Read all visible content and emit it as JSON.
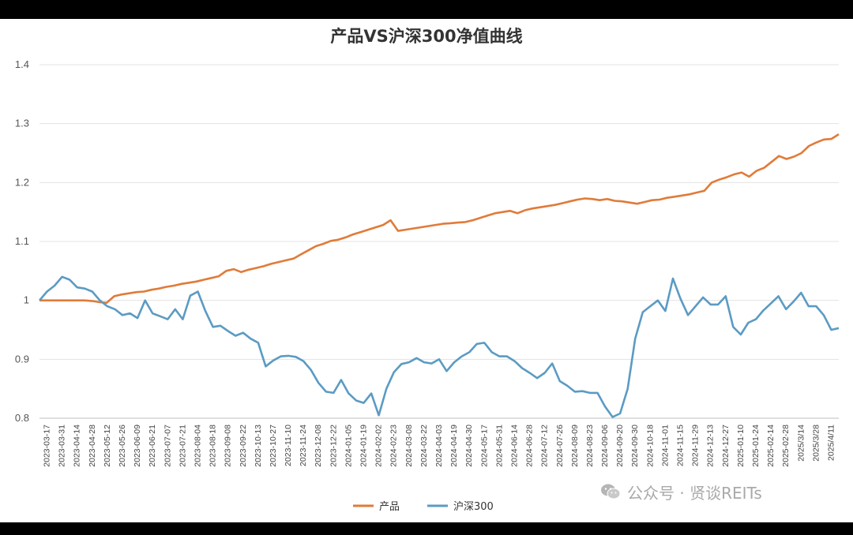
{
  "chart_data": {
    "type": "line",
    "title": "产品VS沪深300净值曲线",
    "xlabel": "",
    "ylabel": "",
    "ylim": [
      0.8,
      1.4
    ],
    "yticks": [
      "0.8",
      "0.9",
      "1",
      "1.1",
      "1.2",
      "1.3",
      "1.4"
    ],
    "grid": true,
    "legend_position": "bottom",
    "x_ticks": [
      "2023-03-17",
      "2023-03-31",
      "2023-04-14",
      "2023-04-28",
      "2023-05-12",
      "2023-05-26",
      "2023-06-09",
      "2023-06-21",
      "2023-07-07",
      "2023-07-21",
      "2023-08-04",
      "2023-08-18",
      "2023-09-08",
      "2023-09-22",
      "2023-10-13",
      "2023-10-27",
      "2023-11-10",
      "2023-11-24",
      "2023-12-08",
      "2023-12-22",
      "2024-01-05",
      "2024-01-19",
      "2024-02-02",
      "2024-02-23",
      "2024-03-08",
      "2024-03-22",
      "2024-04-03",
      "2024-04-19",
      "2024-04-30",
      "2024-05-17",
      "2024-05-31",
      "2024-06-14",
      "2024-06-28",
      "2024-07-12",
      "2024-07-26",
      "2024-08-09",
      "2024-08-23",
      "2024-09-06",
      "2024-09-20",
      "2024-09-30",
      "2024-10-18",
      "2024-11-01",
      "2024-11-15",
      "2024-11-29",
      "2024-12-13",
      "2024-12-27",
      "2025-01-10",
      "2025-01-24",
      "2025-02-14",
      "2025-02-28",
      "2025/3/14",
      "2025/3/28",
      "2025/4/11"
    ],
    "series": [
      {
        "name": "产品",
        "color": "#E07B39",
        "values": [
          1.0,
          1.0,
          1.0,
          1.0,
          1.0,
          1.0,
          1.0,
          0.999,
          0.997,
          0.996,
          1.007,
          1.01,
          1.012,
          1.014,
          1.015,
          1.018,
          1.02,
          1.023,
          1.025,
          1.028,
          1.03,
          1.032,
          1.035,
          1.038,
          1.041,
          1.05,
          1.053,
          1.048,
          1.052,
          1.055,
          1.058,
          1.062,
          1.065,
          1.068,
          1.071,
          1.078,
          1.085,
          1.092,
          1.096,
          1.101,
          1.103,
          1.107,
          1.112,
          1.116,
          1.12,
          1.124,
          1.128,
          1.136,
          1.118,
          1.12,
          1.122,
          1.124,
          1.126,
          1.128,
          1.13,
          1.131,
          1.132,
          1.133,
          1.136,
          1.14,
          1.144,
          1.148,
          1.15,
          1.152,
          1.148,
          1.153,
          1.156,
          1.158,
          1.16,
          1.162,
          1.165,
          1.168,
          1.171,
          1.173,
          1.172,
          1.17,
          1.172,
          1.169,
          1.168,
          1.166,
          1.164,
          1.167,
          1.17,
          1.171,
          1.174,
          1.176,
          1.178,
          1.18,
          1.183,
          1.186,
          1.2,
          1.205,
          1.209,
          1.214,
          1.217,
          1.21,
          1.22,
          1.225,
          1.235,
          1.245,
          1.24,
          1.244,
          1.25,
          1.262,
          1.268,
          1.273,
          1.274,
          1.282
        ]
      },
      {
        "name": "沪深300",
        "color": "#5B9BC3",
        "values": [
          1.0,
          1.015,
          1.025,
          1.04,
          1.035,
          1.022,
          1.02,
          1.015,
          1.0,
          0.99,
          0.985,
          0.975,
          0.978,
          0.97,
          1.0,
          0.978,
          0.973,
          0.968,
          0.985,
          0.968,
          1.008,
          1.015,
          0.982,
          0.955,
          0.957,
          0.948,
          0.94,
          0.945,
          0.935,
          0.928,
          0.888,
          0.898,
          0.905,
          0.906,
          0.904,
          0.897,
          0.882,
          0.86,
          0.845,
          0.843,
          0.865,
          0.842,
          0.83,
          0.826,
          0.842,
          0.805,
          0.85,
          0.878,
          0.892,
          0.895,
          0.902,
          0.895,
          0.893,
          0.9,
          0.88,
          0.895,
          0.905,
          0.912,
          0.926,
          0.928,
          0.912,
          0.905,
          0.905,
          0.897,
          0.885,
          0.877,
          0.868,
          0.877,
          0.893,
          0.863,
          0.855,
          0.845,
          0.846,
          0.843,
          0.843,
          0.82,
          0.802,
          0.808,
          0.85,
          0.935,
          0.98,
          0.99,
          1.0,
          0.982,
          1.037,
          1.003,
          0.975,
          0.99,
          1.005,
          0.993,
          0.993,
          1.007,
          0.955,
          0.942,
          0.962,
          0.968,
          0.983,
          0.995,
          1.007,
          0.985,
          0.998,
          1.013,
          0.99,
          0.99,
          0.975,
          0.95,
          0.953
        ]
      }
    ]
  },
  "watermark": {
    "text": "公众号 · 贤谈REITs",
    "icon": "wechat-icon"
  }
}
